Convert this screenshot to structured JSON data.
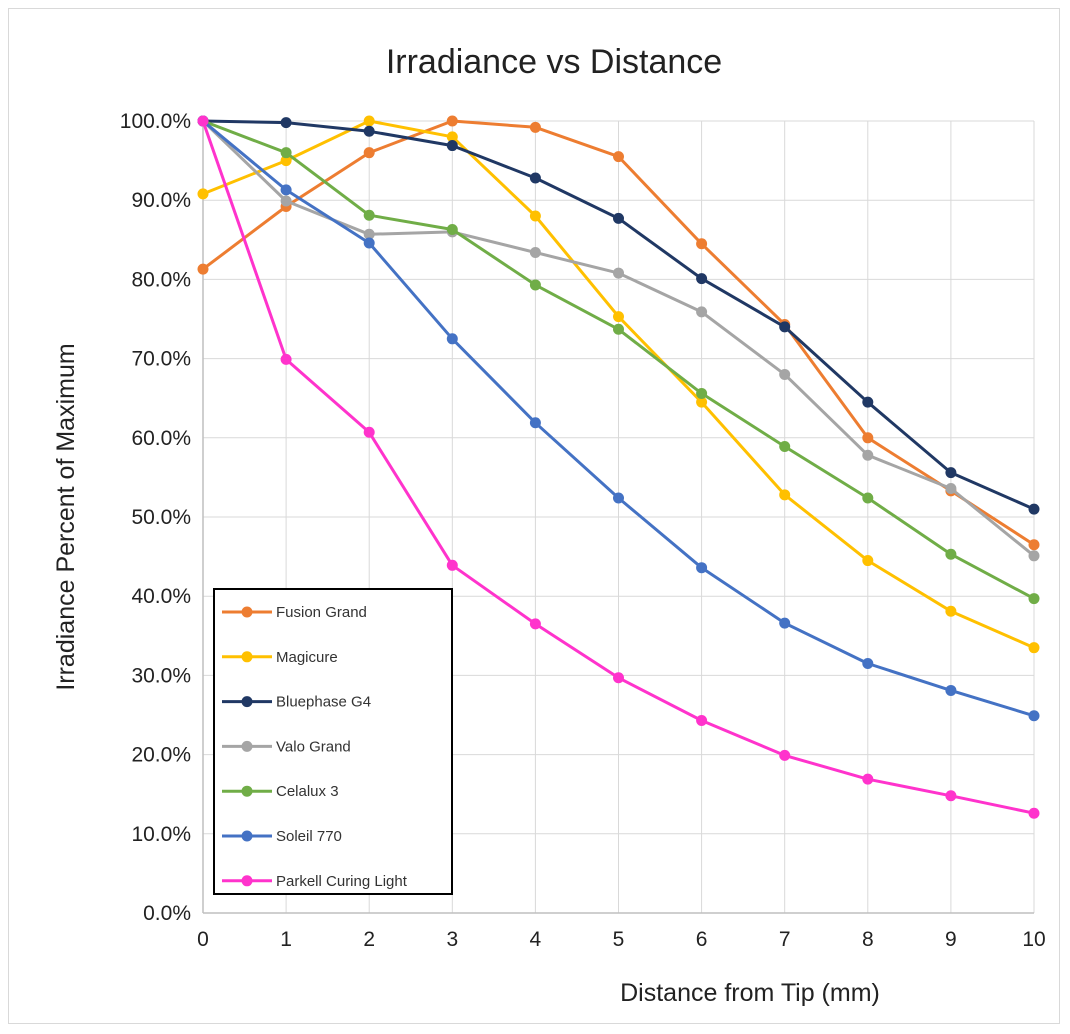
{
  "chart_data": {
    "type": "line",
    "title": "Irradiance vs Distance",
    "xlabel": "Distance from Tip (mm)",
    "ylabel": "Irradiance Percent of Maximum",
    "x": [
      0,
      1,
      2,
      3,
      4,
      5,
      6,
      7,
      8,
      9,
      10
    ],
    "xlim": [
      0,
      10
    ],
    "ylim": [
      0,
      100
    ],
    "y_ticks": [
      "0.0%",
      "10.0%",
      "20.0%",
      "30.0%",
      "40.0%",
      "50.0%",
      "60.0%",
      "70.0%",
      "80.0%",
      "90.0%",
      "100.0%"
    ],
    "x_ticks": [
      "0",
      "1",
      "2",
      "3",
      "4",
      "5",
      "6",
      "7",
      "8",
      "9",
      "10"
    ],
    "grid": true,
    "legend_position": "bottom-left",
    "series": [
      {
        "name": "Fusion Grand",
        "color": "#ED7D31",
        "values": [
          81.3,
          89.2,
          96.0,
          100.0,
          99.2,
          95.5,
          84.5,
          74.3,
          60.0,
          53.3,
          46.5
        ]
      },
      {
        "name": "Magicure",
        "color": "#FFC000",
        "values": [
          90.8,
          95.0,
          100.0,
          98.0,
          88.0,
          75.3,
          64.5,
          52.8,
          44.5,
          38.1,
          33.5
        ]
      },
      {
        "name": "Bluephase G4",
        "color": "#203864",
        "values": [
          100.0,
          99.8,
          98.7,
          96.9,
          92.8,
          87.7,
          80.1,
          74.0,
          64.5,
          55.6,
          51.0
        ]
      },
      {
        "name": "Valo Grand",
        "color": "#A5A5A5",
        "values": [
          100.0,
          89.9,
          85.7,
          86.0,
          83.4,
          80.8,
          75.9,
          68.0,
          57.8,
          53.6,
          45.1
        ]
      },
      {
        "name": "Celalux 3",
        "color": "#70AD47",
        "values": [
          100.0,
          96.0,
          88.1,
          86.3,
          79.3,
          73.7,
          65.6,
          58.9,
          52.4,
          45.3,
          39.7
        ]
      },
      {
        "name": "Soleil 770",
        "color": "#4472C4",
        "values": [
          100.0,
          91.3,
          84.6,
          72.5,
          61.9,
          52.4,
          43.6,
          36.6,
          31.5,
          28.1,
          24.9
        ]
      },
      {
        "name": "Parkell Curing Light",
        "color": "#FF33CC",
        "values": [
          100.0,
          69.9,
          60.7,
          43.9,
          36.5,
          29.7,
          24.3,
          19.9,
          16.9,
          14.8,
          12.6
        ]
      }
    ]
  }
}
